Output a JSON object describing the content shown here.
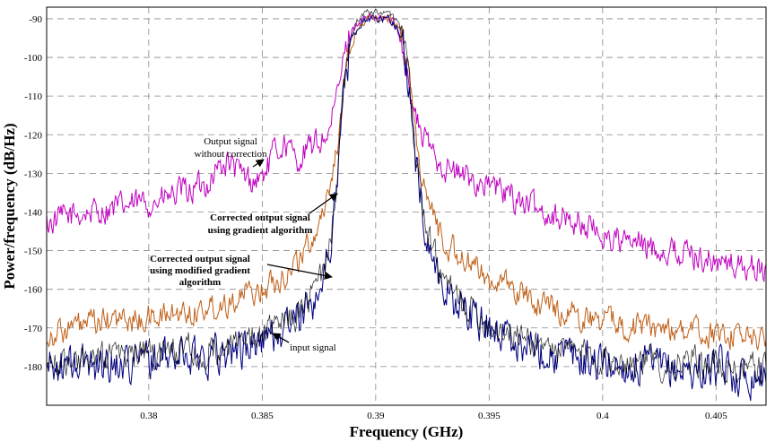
{
  "chart_data": {
    "type": "line",
    "title": "",
    "xlabel": "Frequency (GHz)",
    "ylabel": "Power/frequency (dB/Hz)",
    "xlim": [
      0.3755,
      0.4072
    ],
    "ylim": [
      -190,
      -87
    ],
    "x_ticks": [
      0.38,
      0.385,
      0.39,
      0.395,
      0.4,
      0.405
    ],
    "x_tick_labels": [
      "0.38",
      "0.385",
      "0.39",
      "0.395",
      "0.4",
      "0.405"
    ],
    "y_ticks": [
      -180,
      -170,
      -160,
      -150,
      -140,
      -130,
      -120,
      -110,
      -100,
      -90
    ],
    "y_tick_labels": [
      "-180",
      "-170",
      "-160",
      "-150",
      "-140",
      "-130",
      "-120",
      "-110",
      "-100",
      "-90"
    ],
    "grid": "dashed",
    "series": [
      {
        "name": "Output signal without correction",
        "color": "#c000c0",
        "x": [
          0.3755,
          0.3765,
          0.3775,
          0.3785,
          0.3795,
          0.3805,
          0.3815,
          0.3825,
          0.383,
          0.3835,
          0.384,
          0.3845,
          0.385,
          0.3855,
          0.386,
          0.3865,
          0.387,
          0.3875,
          0.388,
          0.3883,
          0.3886,
          0.3889,
          0.3892,
          0.3895,
          0.3898,
          0.39,
          0.3902,
          0.3905,
          0.3908,
          0.391,
          0.3913,
          0.3916,
          0.392,
          0.3925,
          0.393,
          0.3935,
          0.394,
          0.395,
          0.396,
          0.397,
          0.398,
          0.399,
          0.4,
          0.401,
          0.402,
          0.403,
          0.404,
          0.405,
          0.406,
          0.4072
        ],
        "y": [
          -143,
          -141,
          -140,
          -139,
          -138,
          -137,
          -135,
          -133,
          -129,
          -127,
          -130,
          -132,
          -131,
          -125,
          -122,
          -127,
          -124,
          -122,
          -119,
          -110,
          -100,
          -93,
          -91,
          -90,
          -90,
          -90,
          -90,
          -90,
          -91,
          -93,
          -100,
          -112,
          -120,
          -124,
          -128,
          -130,
          -131,
          -133,
          -136,
          -139,
          -141,
          -143,
          -146,
          -148,
          -149,
          -150,
          -151,
          -153,
          -154,
          -155
        ]
      },
      {
        "name": "Corrected output signal using gradient algorithm",
        "color": "#c06018",
        "x": [
          0.3755,
          0.3765,
          0.3775,
          0.3785,
          0.3795,
          0.3805,
          0.3815,
          0.3825,
          0.3835,
          0.3845,
          0.385,
          0.3855,
          0.386,
          0.3865,
          0.387,
          0.3875,
          0.388,
          0.3885,
          0.3888,
          0.3891,
          0.3894,
          0.3897,
          0.39,
          0.3903,
          0.3906,
          0.3909,
          0.3912,
          0.3915,
          0.3918,
          0.3922,
          0.3927,
          0.393,
          0.3935,
          0.394,
          0.3945,
          0.395,
          0.396,
          0.397,
          0.398,
          0.399,
          0.4,
          0.401,
          0.402,
          0.403,
          0.404,
          0.405,
          0.406,
          0.4072
        ],
        "y": [
          -172,
          -170,
          -169,
          -168,
          -168,
          -167,
          -166,
          -165,
          -163,
          -161,
          -160,
          -158,
          -156,
          -153,
          -149,
          -143,
          -133,
          -115,
          -100,
          -94,
          -91,
          -90,
          -90,
          -90,
          -90,
          -91,
          -94,
          -105,
          -122,
          -136,
          -143,
          -148,
          -150,
          -153,
          -155,
          -157,
          -160,
          -163,
          -165,
          -167,
          -168,
          -169,
          -170,
          -170,
          -171,
          -172,
          -172,
          -173
        ]
      },
      {
        "name": "Corrected output signal using modified gradient algorithm",
        "color": "#000080",
        "x": [
          0.3755,
          0.3765,
          0.3775,
          0.3785,
          0.3795,
          0.3805,
          0.3815,
          0.3825,
          0.3835,
          0.3845,
          0.385,
          0.3855,
          0.386,
          0.3865,
          0.387,
          0.3875,
          0.388,
          0.3883,
          0.3886,
          0.3889,
          0.3892,
          0.3895,
          0.3898,
          0.39,
          0.3903,
          0.3906,
          0.3909,
          0.3912,
          0.3915,
          0.3918,
          0.3922,
          0.3927,
          0.393,
          0.3935,
          0.394,
          0.395,
          0.396,
          0.397,
          0.398,
          0.399,
          0.4,
          0.401,
          0.402,
          0.403,
          0.404,
          0.405,
          0.406,
          0.4072
        ],
        "y": [
          -180,
          -180,
          -179,
          -179,
          -178,
          -178,
          -177,
          -177,
          -176,
          -175,
          -173,
          -172,
          -170,
          -168,
          -165,
          -160,
          -150,
          -130,
          -110,
          -97,
          -92,
          -90,
          -90,
          -90,
          -90,
          -90,
          -92,
          -96,
          -110,
          -128,
          -146,
          -155,
          -160,
          -163,
          -166,
          -170,
          -173,
          -175,
          -177,
          -178,
          -179,
          -180,
          -180,
          -181,
          -181,
          -181,
          -182,
          -182
        ]
      }
    ],
    "annotations": [
      {
        "lines": [
          "Output signal",
          "without correction"
        ],
        "bold": false
      },
      {
        "lines": [
          "Corrected output signal",
          "using gradient algorithm"
        ],
        "bold": true
      },
      {
        "lines": [
          "Corrected output signal",
          "using modified gradient",
          "algorithm"
        ],
        "bold": true
      },
      {
        "lines": [
          "input signal"
        ],
        "bold": false
      }
    ]
  },
  "colors": {
    "axis": "#000000",
    "grid": "#888888",
    "background": "#ffffff"
  }
}
